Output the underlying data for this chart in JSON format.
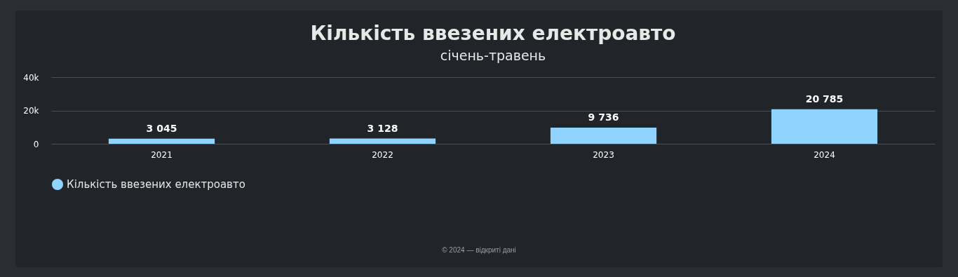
{
  "chart_data": {
    "type": "bar",
    "title": "Кількість ввезених електроавто",
    "subtitle": "січень-травень",
    "categories": [
      "2021",
      "2022",
      "2023",
      "2024"
    ],
    "series": [
      {
        "name": "Кількість ввезених електроавто",
        "color": "#8fd3fe",
        "values": [
          3045,
          3128,
          9736,
          20785
        ],
        "value_labels": [
          "3 045",
          "3 128",
          "9 736",
          "20 785"
        ]
      }
    ],
    "ylim": [
      0,
      40000
    ],
    "yticks": [
      0,
      {
        "value": 20000,
        "label": "20k"
      },
      {
        "value": 40000,
        "label": "40k"
      }
    ],
    "grid": "y",
    "legend": "bottom",
    "annotations": [
      "© 2024 — відкриті дані"
    ]
  }
}
